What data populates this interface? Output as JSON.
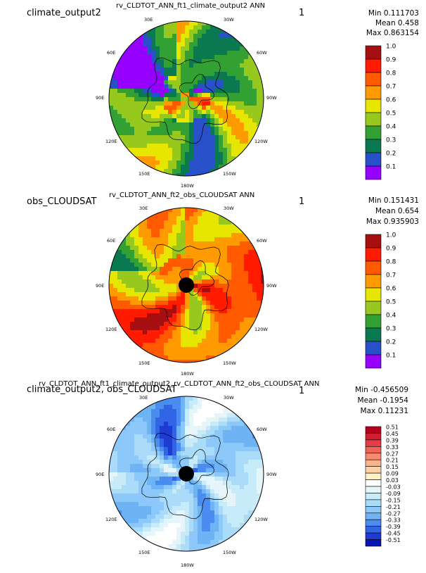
{
  "panels": [
    {
      "label": "climate_output2",
      "title": "rv_CLDTOT_ANN_ft1_climate_output2  ANN",
      "page_num": "1",
      "stats": {
        "min": "Min 0.111703",
        "mean": "Mean 0.458",
        "max": "Max 0.863154"
      },
      "colorbar": {
        "ticks": [
          "1.0",
          "0.9",
          "0.8",
          "0.7",
          "0.6",
          "0.5",
          "0.4",
          "0.3",
          "0.2",
          "0.1"
        ],
        "colors": [
          "#a50f0f",
          "#ff1a00",
          "#ff5a00",
          "#ff9a00",
          "#e6e600",
          "#96c81e",
          "#32a032",
          "#0a7850",
          "#2850c8",
          "#9600ff"
        ]
      },
      "map_labels": {
        "lon_30e": "30E",
        "lon_30w": "30W",
        "lon_60e": "60E",
        "lon_60w": "60W",
        "lon_90e": "90E",
        "lon_90w": "90W",
        "lon_120e": "120E",
        "lon_120w": "120W",
        "lon_150e": "150E",
        "lon_150w": "150W",
        "lon_180w": "180W"
      },
      "scheme": "abs"
    },
    {
      "label": "obs_CLOUDSAT",
      "title": "rv_CLDTOT_ANN_ft2_obs_CLOUDSAT  ANN",
      "page_num": "1",
      "stats": {
        "min": "Min 0.151431",
        "mean": "Mean 0.654",
        "max": "Max 0.935903"
      },
      "colorbar": {
        "ticks": [
          "1.0",
          "0.9",
          "0.8",
          "0.7",
          "0.6",
          "0.5",
          "0.4",
          "0.3",
          "0.2",
          "0.1"
        ],
        "colors": [
          "#a50f0f",
          "#ff1a00",
          "#ff5a00",
          "#ff9a00",
          "#e6e600",
          "#96c81e",
          "#32a032",
          "#0a7850",
          "#2850c8",
          "#9600ff"
        ]
      },
      "map_labels": {
        "lon_30e": "30E",
        "lon_30w": "30W",
        "lon_60e": "60E",
        "lon_60w": "60W",
        "lon_90e": "90E",
        "lon_90w": "90W",
        "lon_120e": "120E",
        "lon_120w": "120W",
        "lon_150e": "150E",
        "lon_150w": "150W",
        "lon_180w": "180W"
      },
      "scheme": "abs-obs"
    },
    {
      "label": "climate_output2, obs_CLOUDSAT",
      "title": "rv_CLDTOT_ANN_ft1_climate_output2_rv_CLDTOT_ANN_ft2_obs_CLOUDSAT  ANN",
      "page_num": "1",
      "stats": {
        "min": "Min -0.456509",
        "mean": "Mean -0.1954",
        "max": "Max 0.11231"
      },
      "colorbar": {
        "ticks": [
          "0.51",
          "0.45",
          "0.39",
          "0.33",
          "0.27",
          "0.21",
          "0.15",
          "0.09",
          "0.03",
          "-0.03",
          "-0.09",
          "-0.15",
          "-0.21",
          "-0.27",
          "-0.33",
          "-0.39",
          "-0.45",
          "-0.51"
        ],
        "colors": [
          "#b4001e",
          "#d21e32",
          "#e63c46",
          "#f0645a",
          "#f58c6e",
          "#fab48c",
          "#fcd2a5",
          "#fff0c8",
          "#ffffff",
          "#e6f5fa",
          "#c8ebfa",
          "#aadcfa",
          "#8cc8fa",
          "#6eb4f5",
          "#4b8cf0",
          "#3264e6",
          "#1e3cd2",
          "#0a14b4"
        ]
      },
      "map_labels": {
        "lon_30e": "30E",
        "lon_30w": "30W",
        "lon_60e": "60E",
        "lon_60w": "60W",
        "lon_90e": "90E",
        "lon_90w": "90W",
        "lon_120e": "120E",
        "lon_120w": "120W",
        "lon_150e": "150E",
        "lon_150w": "150W",
        "lon_180w": "180W"
      },
      "scheme": "diff"
    }
  ],
  "chart_data": [
    {
      "type": "heatmap",
      "title": "rv_CLDTOT_ANN_ft1_climate_output2  ANN",
      "projection": "north polar stereographic",
      "colorbar_range": [
        0.1,
        1.0
      ],
      "min": 0.111703,
      "mean": 0.458,
      "max": 0.863154
    },
    {
      "type": "heatmap",
      "title": "rv_CLDTOT_ANN_ft2_obs_CLOUDSAT  ANN",
      "projection": "north polar stereographic",
      "colorbar_range": [
        0.1,
        1.0
      ],
      "min": 0.151431,
      "mean": 0.654,
      "max": 0.935903
    },
    {
      "type": "heatmap",
      "title": "rv_CLDTOT_ANN_ft1_climate_output2_rv_CLDTOT_ANN_ft2_obs_CLOUDSAT  ANN",
      "projection": "north polar stereographic",
      "colorbar_range": [
        -0.51,
        0.51
      ],
      "min": -0.456509,
      "mean": -0.1954,
      "max": 0.11231
    }
  ]
}
